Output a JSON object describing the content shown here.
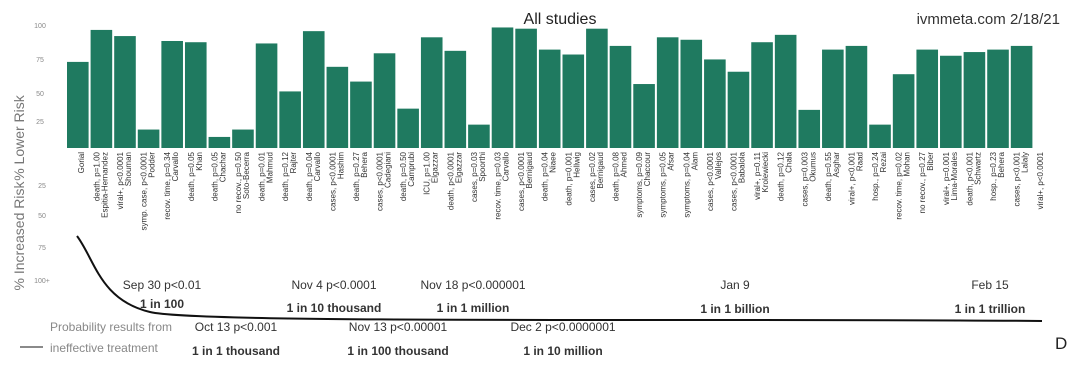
{
  "chart_data": {
    "type": "bar",
    "title": "All studies",
    "source": "ivmmeta.com 2/18/21",
    "ylabel_lower": "% Lower Risk",
    "ylabel_increased": "% Increased Risk",
    "y_ticks_lower": [
      "100",
      "75",
      "50",
      "25"
    ],
    "y_ticks_increased": [
      "25",
      "50",
      "75",
      "100+"
    ],
    "ylim": [
      -100,
      100
    ],
    "bar_color": "#1f7a60",
    "bars": [
      {
        "name": "Gorial",
        "value": 70
      },
      {
        "name": "Espitia-Hernandez",
        "label": "death, p=1.00",
        "value": 96
      },
      {
        "name": "Shouman",
        "label": "viral+, p<0.0001",
        "value": 91
      },
      {
        "name": "Podder",
        "label": "symp. case, p<0.0001",
        "value": 15
      },
      {
        "name": "Carvallo",
        "label": "recov. time, p=0.34",
        "value": 87
      },
      {
        "name": "Khan",
        "label": "death, p=0.05",
        "value": 86
      },
      {
        "name": "Chachar",
        "label": "death, p=0.05",
        "value": 9
      },
      {
        "name": "Soto-Becerra",
        "label": "no recov., p=0.50",
        "value": 15
      },
      {
        "name": "Mahmud",
        "label": "death, p=0.01",
        "value": 85
      },
      {
        "name": "Rajter",
        "label": "death, p=0.12",
        "value": 46
      },
      {
        "name": "Carvallo",
        "label": "death, p=0.04",
        "value": 95
      },
      {
        "name": "Hashim",
        "label": "cases, p<0.0001",
        "value": 66
      },
      {
        "name": "Behera",
        "label": "death, p=0.27",
        "value": 54
      },
      {
        "name": "Cadegiani",
        "label": "cases, p<0.0001",
        "value": 77
      },
      {
        "name": "Camprubi",
        "label": "death, p=0.50",
        "value": 32
      },
      {
        "name": "Elgazzar",
        "label": "ICU, p=1.00",
        "value": 90
      },
      {
        "name": "Elgazzar",
        "label": "death, p<0.0001",
        "value": 79
      },
      {
        "name": "Spoorthi",
        "label": "cases, p=0.03",
        "value": 19
      },
      {
        "name": "Carvallo",
        "label": "recov. time, p=0.03",
        "value": 98
      },
      {
        "name": "Bernigaud",
        "label": "cases, p<0.0001",
        "value": 97
      },
      {
        "name": "Niaee",
        "label": "death, p=0.04",
        "value": 80
      },
      {
        "name": "Hellwig",
        "label": "death, p=0.001",
        "value": 76
      },
      {
        "name": "Bernigaud",
        "label": "cases, p=0.02",
        "value": 97
      },
      {
        "name": "Ahmed",
        "label": "death, p=0.08",
        "value": 83
      },
      {
        "name": "Chaccour",
        "label": "symptoms, p=0.09",
        "value": 52
      },
      {
        "name": "Afsar",
        "label": "symptoms, p=0.05",
        "value": 90
      },
      {
        "name": "Alam",
        "label": "symptoms, p=0.04",
        "value": 88
      },
      {
        "name": "Vallejos",
        "label": "cases, p<0.0001",
        "value": 72
      },
      {
        "name": "Babalola",
        "label": "cases, p<0.0001",
        "value": 62
      },
      {
        "name": "Krolewiecki",
        "label": "viral+, p=0.11",
        "value": 86
      },
      {
        "name": "Chala",
        "label": "death, p=0.12",
        "value": 92
      },
      {
        "name": "Okumus",
        "label": "cases, p=0.003",
        "value": 31
      },
      {
        "name": "Asghar",
        "label": "death, p=0.55",
        "value": 80
      },
      {
        "name": "Raad",
        "label": "viral+, p<0.001",
        "value": 83
      },
      {
        "name": "Rezai",
        "label": "hosp., p=0.24",
        "value": 19
      },
      {
        "name": "Mohan",
        "label": "recov. time, p=0.02",
        "value": 60
      },
      {
        "name": "Biber",
        "label": "no recov., p=0.27",
        "value": 80
      },
      {
        "name": "Lima-Morales",
        "label": "viral+, p=0.001",
        "value": 75
      },
      {
        "name": "Schwartz",
        "label": "death, p<0.001",
        "value": 78
      },
      {
        "name": "Behera",
        "label": "hosp., p=0.23",
        "value": 80
      },
      {
        "name": "Lalaly",
        "label": "cases, p<0.001",
        "value": 83
      },
      {
        "name": "",
        "label": "viral+, p<0.0001",
        "value": 0
      }
    ],
    "annotations": [
      {
        "date": "Sep 30",
        "p": "p<0.01",
        "odds": "1 in 100",
        "row": "upper"
      },
      {
        "date": "Oct 13",
        "p": "p<0.001",
        "odds": "1 in 1 thousand",
        "row": "lower"
      },
      {
        "date": "Nov 4",
        "p": "p<0.0001",
        "odds": "1 in 10 thousand",
        "row": "upper"
      },
      {
        "date": "Nov 13",
        "p": "p<0.00001",
        "odds": "1 in 100 thousand",
        "row": "lower"
      },
      {
        "date": "Nov 18",
        "p": "p<0.000001",
        "odds": "1 in 1 million",
        "row": "upper"
      },
      {
        "date": "Dec 2",
        "p": "p<0.0000001",
        "odds": "1 in 10 million",
        "row": "lower"
      },
      {
        "date": "Jan 9",
        "p": "",
        "odds": "1 in 1 billion",
        "row": "upper"
      },
      {
        "date": "Feb 15",
        "p": "",
        "odds": "1 in 1 trillion",
        "row": "upper"
      }
    ],
    "legend": {
      "line1": "Probability results from",
      "line2": "ineffective treatment"
    },
    "corner_letter": "D"
  }
}
